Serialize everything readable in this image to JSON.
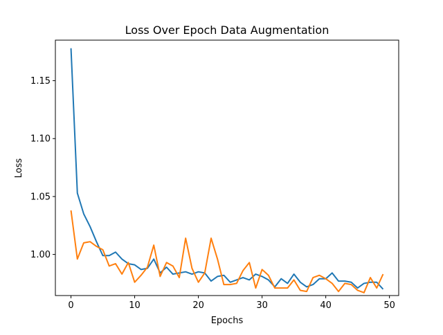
{
  "chart_data": {
    "type": "line",
    "title": "Loss Over Epoch Data Augmentation",
    "xlabel": "Epochs",
    "ylabel": "Loss",
    "xlim": [
      -2.45,
      51.45
    ],
    "ylim": [
      0.9645,
      1.185
    ],
    "xticks": [
      0,
      10,
      20,
      30,
      40,
      50
    ],
    "yticks": [
      1.0,
      1.05,
      1.1,
      1.15
    ],
    "ytick_labels": [
      "1.00",
      "1.05",
      "1.10",
      "1.15"
    ],
    "grid": false,
    "legend": "none",
    "x": [
      0,
      1,
      2,
      3,
      4,
      5,
      6,
      7,
      8,
      9,
      10,
      11,
      12,
      13,
      14,
      15,
      16,
      17,
      18,
      19,
      20,
      21,
      22,
      23,
      24,
      25,
      26,
      27,
      28,
      29,
      30,
      31,
      32,
      33,
      34,
      35,
      36,
      37,
      38,
      39,
      40,
      41,
      42,
      43,
      44,
      45,
      46,
      47,
      48,
      49
    ],
    "series": [
      {
        "color": "#1f77b4",
        "values": [
          1.178,
          1.053,
          1.035,
          1.024,
          1.011,
          0.999,
          0.999,
          1.002,
          0.996,
          0.992,
          0.991,
          0.987,
          0.988,
          0.996,
          0.984,
          0.989,
          0.983,
          0.984,
          0.985,
          0.983,
          0.985,
          0.984,
          0.977,
          0.981,
          0.982,
          0.976,
          0.978,
          0.98,
          0.978,
          0.983,
          0.981,
          0.978,
          0.972,
          0.979,
          0.975,
          0.983,
          0.976,
          0.972,
          0.974,
          0.979,
          0.979,
          0.984,
          0.977,
          0.977,
          0.976,
          0.971,
          0.975,
          0.976,
          0.976,
          0.97
        ]
      },
      {
        "color": "#ff7f0e",
        "values": [
          1.038,
          0.996,
          1.01,
          1.011,
          1.007,
          1.004,
          0.99,
          0.992,
          0.983,
          0.993,
          0.976,
          0.982,
          0.989,
          1.008,
          0.981,
          0.993,
          0.99,
          0.98,
          1.014,
          0.988,
          0.976,
          0.984,
          1.014,
          0.996,
          0.974,
          0.974,
          0.975,
          0.986,
          0.993,
          0.971,
          0.987,
          0.982,
          0.971,
          0.971,
          0.971,
          0.978,
          0.969,
          0.968,
          0.98,
          0.982,
          0.979,
          0.975,
          0.968,
          0.975,
          0.974,
          0.969,
          0.967,
          0.98,
          0.971,
          0.983
        ]
      }
    ]
  }
}
